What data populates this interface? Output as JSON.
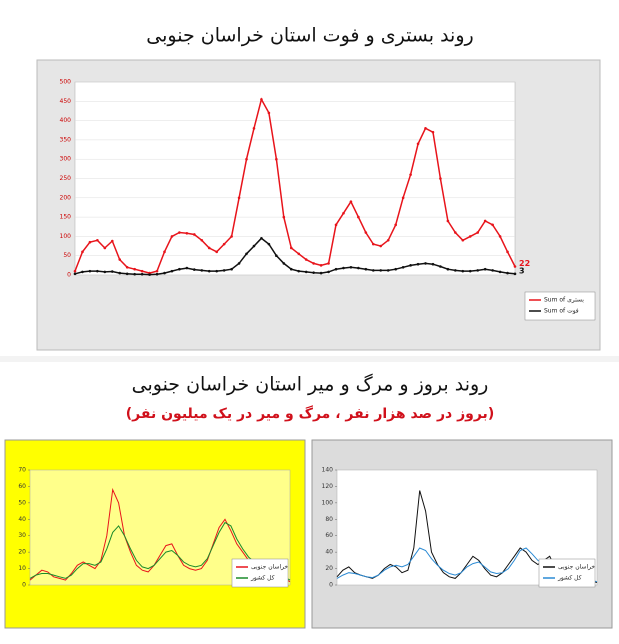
{
  "chart_data": [
    {
      "type": "line",
      "title": "روند بستری و فوت استان خراسان جنوبی",
      "categories": [
        null,
        null,
        null,
        null,
        null,
        null,
        null,
        null,
        null,
        null,
        null,
        null,
        null,
        null,
        null,
        null,
        null,
        null,
        null,
        null,
        null,
        null,
        null,
        null,
        null,
        null,
        null,
        null,
        null,
        null,
        null,
        null,
        null,
        null,
        null,
        null,
        null,
        null,
        null,
        null,
        null,
        null,
        null,
        null,
        null,
        null,
        null,
        null,
        null,
        null,
        null,
        null,
        null,
        null,
        null,
        null,
        null,
        null,
        null,
        null
      ],
      "series": [
        {
          "name": "Sum of بستری",
          "color": "#e8141b",
          "values": [
            10,
            60,
            85,
            90,
            70,
            88,
            40,
            20,
            15,
            10,
            5,
            10,
            60,
            100,
            110,
            108,
            105,
            90,
            70,
            60,
            80,
            100,
            200,
            300,
            380,
            455,
            420,
            300,
            150,
            70,
            55,
            40,
            30,
            25,
            30,
            130,
            160,
            190,
            150,
            110,
            80,
            75,
            90,
            130,
            200,
            260,
            340,
            380,
            370,
            250,
            140,
            110,
            90,
            100,
            110,
            140,
            130,
            100,
            60,
            22
          ]
        },
        {
          "name": "Sum of فوت",
          "color": "#111111",
          "values": [
            3,
            8,
            10,
            10,
            8,
            9,
            5,
            3,
            2,
            2,
            1,
            2,
            5,
            10,
            15,
            18,
            14,
            12,
            10,
            10,
            12,
            15,
            30,
            55,
            75,
            95,
            80,
            50,
            30,
            15,
            10,
            8,
            6,
            5,
            8,
            15,
            18,
            20,
            18,
            15,
            12,
            12,
            12,
            15,
            20,
            25,
            28,
            30,
            28,
            22,
            15,
            12,
            10,
            10,
            12,
            15,
            12,
            8,
            5,
            3
          ]
        }
      ],
      "ylim": [
        0,
        500
      ],
      "yticks": [
        0,
        50,
        100,
        150,
        200,
        250,
        300,
        350,
        400,
        450,
        500
      ],
      "grid": true,
      "legend": "right"
    },
    {
      "type": "line",
      "title": "روند بروز و مرگ و میر استان خراسان جنوبی",
      "subtitle": "(بروز در صد هزار نفر ، مرگ و میر در یک میلیون نفر)",
      "categories": [
        null,
        null,
        null,
        null,
        null,
        null,
        null,
        null,
        null,
        null,
        null,
        null,
        null,
        null,
        null,
        null,
        null,
        null,
        null,
        null,
        null,
        null,
        null,
        null,
        null,
        null,
        null,
        null,
        null,
        null,
        null,
        null,
        null,
        null,
        null,
        null,
        null,
        null,
        null,
        null,
        null,
        null,
        null,
        null,
        null
      ],
      "series": [
        {
          "name": "خراسان جنوبی",
          "color": "#e8141b",
          "values": [
            3,
            6,
            9,
            8,
            5,
            4,
            3,
            7,
            12,
            14,
            12,
            10,
            15,
            30,
            58,
            50,
            30,
            20,
            12,
            9,
            8,
            12,
            18,
            24,
            25,
            18,
            12,
            10,
            9,
            10,
            15,
            25,
            35,
            40,
            33,
            25,
            20,
            15,
            12,
            15,
            14,
            10,
            6,
            4,
            2
          ]
        },
        {
          "name": "کل کشور",
          "color": "#1a8a2a",
          "values": [
            4,
            6,
            7,
            7,
            6,
            5,
            4,
            6,
            10,
            13,
            13,
            12,
            14,
            22,
            32,
            36,
            30,
            22,
            15,
            11,
            10,
            12,
            16,
            20,
            21,
            18,
            14,
            12,
            11,
            12,
            16,
            24,
            32,
            38,
            36,
            28,
            22,
            17,
            14,
            14,
            13,
            11,
            8,
            5,
            3
          ]
        }
      ],
      "ylim": [
        0,
        70
      ],
      "yticks": [
        0,
        10,
        20,
        30,
        40,
        50,
        60,
        70
      ],
      "legend": "bottom-right"
    },
    {
      "type": "line",
      "categories": [
        null,
        null,
        null,
        null,
        null,
        null,
        null,
        null,
        null,
        null,
        null,
        null,
        null,
        null,
        null,
        null,
        null,
        null,
        null,
        null,
        null,
        null,
        null,
        null,
        null,
        null,
        null,
        null,
        null,
        null,
        null,
        null,
        null,
        null,
        null,
        null,
        null,
        null,
        null,
        null,
        null,
        null,
        null,
        null,
        null
      ],
      "series": [
        {
          "name": "خراسان جنوبی",
          "color": "#111111",
          "values": [
            10,
            18,
            22,
            15,
            12,
            10,
            8,
            12,
            20,
            25,
            22,
            15,
            18,
            45,
            115,
            90,
            40,
            25,
            15,
            10,
            8,
            15,
            25,
            35,
            30,
            20,
            12,
            10,
            15,
            25,
            35,
            45,
            40,
            30,
            25,
            30,
            35,
            20,
            15,
            20,
            18,
            12,
            8,
            5,
            3
          ]
        },
        {
          "name": "کل کشور",
          "color": "#2a8ad4",
          "values": [
            8,
            12,
            15,
            14,
            12,
            10,
            9,
            12,
            18,
            22,
            24,
            22,
            25,
            35,
            45,
            42,
            32,
            24,
            18,
            14,
            12,
            15,
            22,
            26,
            28,
            22,
            16,
            14,
            15,
            20,
            30,
            42,
            45,
            38,
            30,
            26,
            22,
            18,
            16,
            16,
            15,
            12,
            9,
            6,
            4
          ]
        }
      ],
      "ylim": [
        0,
        140
      ],
      "yticks": [
        0,
        20,
        40,
        60,
        80,
        100,
        120,
        140
      ],
      "legend": "bottom-right"
    }
  ]
}
